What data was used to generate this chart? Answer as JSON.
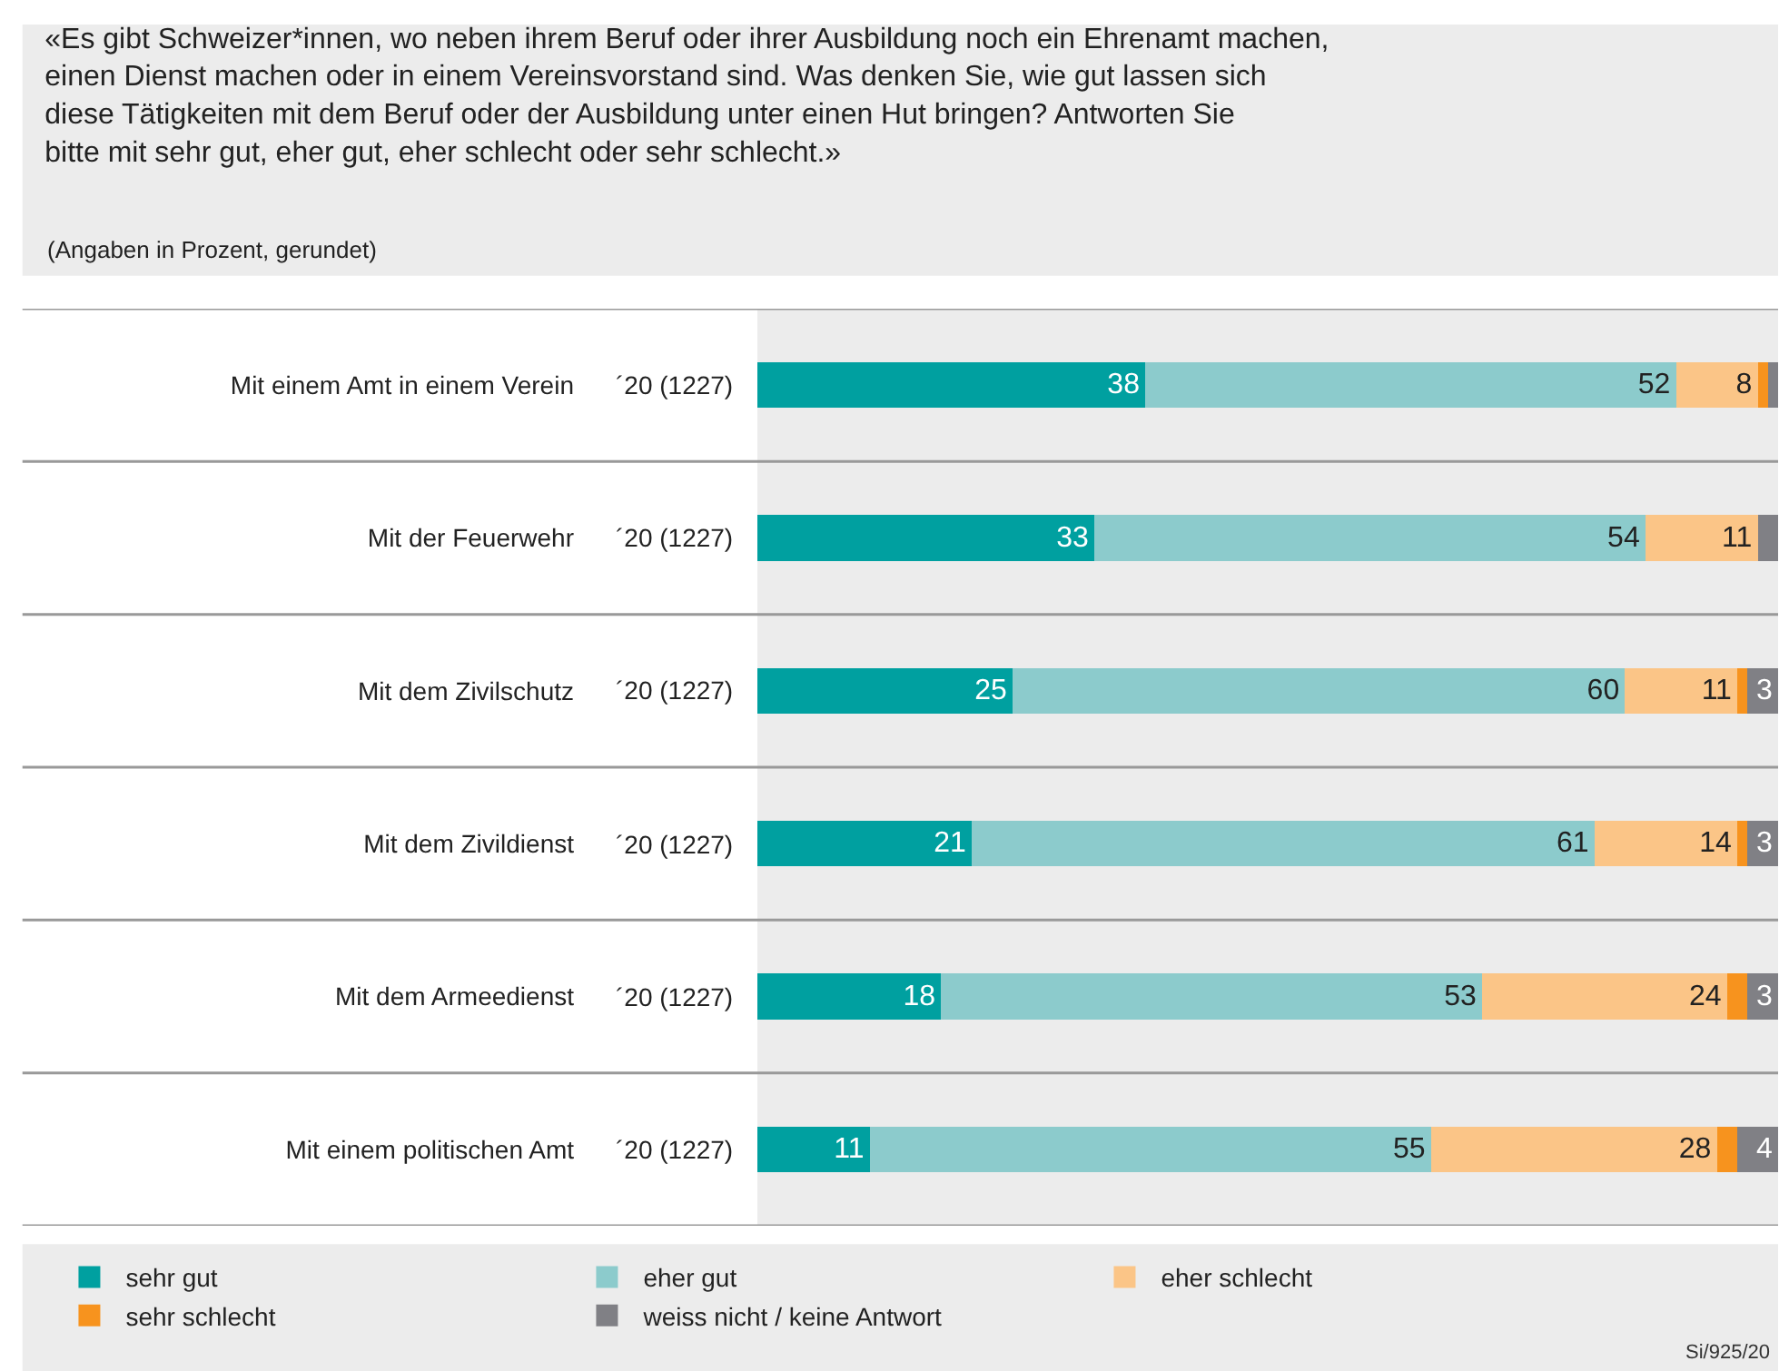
{
  "chart_data": {
    "type": "bar",
    "orientation": "horizontal",
    "stacked": true,
    "title": "«Es gibt Schweizer*innen, wo neben ihrem Beruf oder ihrer Ausbildung noch ein Ehrenamt machen, einen Dienst machen oder in einem Vereinsvorstand sind. Was denken Sie, wie gut lassen sich diese Tätigkeiten mit dem Beruf oder der Ausbildung unter einen Hut bringen? Antworten Sie bitte mit sehr gut, eher gut, eher schlecht oder sehr schlecht.»",
    "subtitle": "(Angaben in Prozent, gerundet)",
    "categories": [
      "Mit einem Amt in einem Verein",
      "Mit der Feuerwehr",
      "Mit dem Zivilschutz",
      "Mit dem Zivildienst",
      "Mit dem Armeedienst",
      "Mit einem politischen Amt"
    ],
    "y2_categories": [
      "´20 (1227)",
      "´20 (1227)",
      "´20 (1227)",
      "´20 (1227)",
      "´20 (1227)",
      "´20 (1227)"
    ],
    "series": [
      {
        "name": "sehr gut",
        "color": "#00a0a0",
        "values": [
          38,
          33,
          25,
          21,
          18,
          11
        ],
        "value_labels": [
          "38",
          "33",
          "25",
          "21",
          "18",
          "11"
        ]
      },
      {
        "name": "eher gut",
        "color": "#8ccbcc",
        "values": [
          52,
          54,
          60,
          61,
          53,
          55
        ],
        "value_labels": [
          "52",
          "54",
          "60",
          "61",
          "53",
          "55"
        ]
      },
      {
        "name": "eher schlecht",
        "color": "#fbc587",
        "values": [
          8,
          11,
          11,
          14,
          24,
          28
        ],
        "value_labels": [
          "8",
          "11",
          "11",
          "14",
          "24",
          "28"
        ]
      },
      {
        "name": "sehr schlecht",
        "color": "#f7931e",
        "values": [
          1,
          0,
          1,
          1,
          2,
          2
        ],
        "value_labels": [
          null,
          null,
          null,
          null,
          null,
          null
        ]
      },
      {
        "name": "weiss nicht / keine Antwort",
        "color": "#808085",
        "values": [
          1,
          2,
          3,
          3,
          3,
          4
        ],
        "value_labels": [
          null,
          null,
          "3",
          "3",
          "3",
          "4"
        ]
      }
    ],
    "legend": "bottom",
    "grid": false,
    "tick_labels": "y",
    "annotations": [
      "Si/925/20"
    ]
  }
}
